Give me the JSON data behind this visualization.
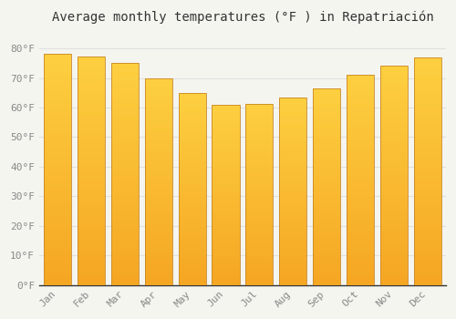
{
  "months": [
    "Jan",
    "Feb",
    "Mar",
    "Apr",
    "May",
    "Jun",
    "Jul",
    "Aug",
    "Sep",
    "Oct",
    "Nov",
    "Dec"
  ],
  "values": [
    78.3,
    77.2,
    75.2,
    70.0,
    65.1,
    61.0,
    61.3,
    63.5,
    66.5,
    71.1,
    74.1,
    77.0
  ],
  "bar_color_top": "#FDD835",
  "bar_color_bottom": "#F5A623",
  "bar_edge_color": "#C8882A",
  "title": "Average monthly temperatures (°F ) in Repatriación",
  "title_fontsize": 10,
  "background_color": "#f5f5f0",
  "plot_bg_color": "#f5f5f0",
  "grid_color": "#e0e0e0",
  "yticks": [
    0,
    10,
    20,
    30,
    40,
    50,
    60,
    70,
    80
  ],
  "ylim": [
    0,
    86
  ],
  "tick_label_color": "#888888",
  "tick_fontsize": 8,
  "font_family": "monospace",
  "bar_width": 0.82
}
